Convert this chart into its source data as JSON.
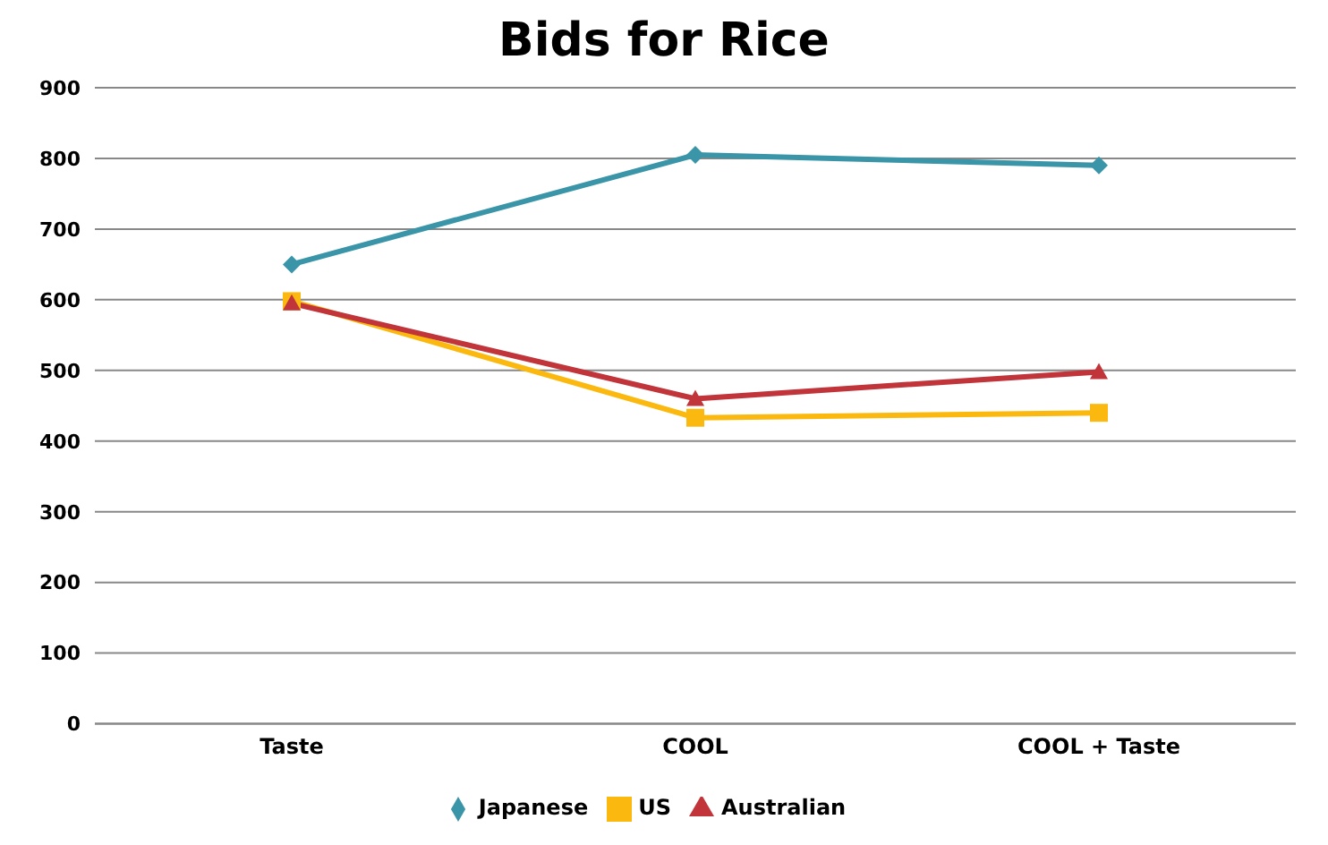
{
  "chart_data": {
    "type": "line",
    "title": "Bids for Rice",
    "categories": [
      "Taste",
      "COOL",
      "COOL + Taste"
    ],
    "series": [
      {
        "name": "Japanese",
        "color": "#3a95a8",
        "values": [
          650,
          805,
          790
        ],
        "marker": "diamond"
      },
      {
        "name": "US",
        "color": "#fbb90f",
        "values": [
          598,
          433,
          440
        ],
        "marker": "square"
      },
      {
        "name": "Australian",
        "color": "#c0343a",
        "values": [
          595,
          460,
          498
        ],
        "marker": "triangle"
      }
    ],
    "ylim": [
      0,
      900
    ],
    "yticks": [
      0,
      100,
      200,
      300,
      400,
      500,
      600,
      700,
      800,
      900
    ],
    "grid": "y",
    "legend": "bottom"
  }
}
